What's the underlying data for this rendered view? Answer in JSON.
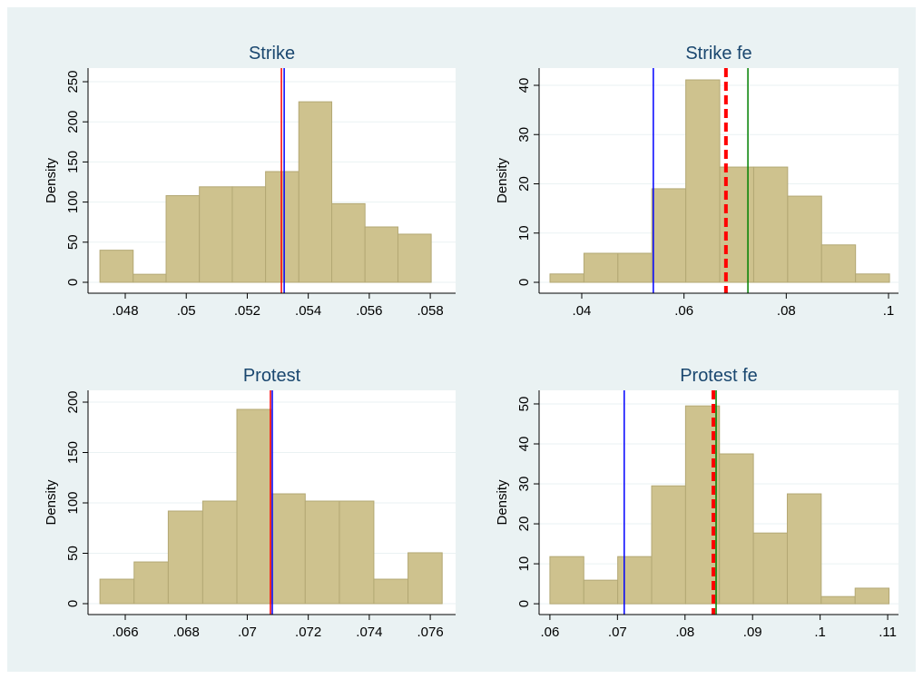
{
  "chart_data": [
    {
      "type": "histogram",
      "title": "Strike",
      "ylabel": "Density",
      "color": "#cec28e",
      "bins": [
        0.04717,
        0.04826,
        0.04934,
        0.05043,
        0.05151,
        0.0526,
        0.05369,
        0.05477,
        0.05586,
        0.05694,
        0.05803
      ],
      "values": [
        40,
        10,
        108,
        119,
        119,
        138,
        225,
        98,
        69,
        60
      ],
      "xlim": [
        0.04678,
        0.05883
      ],
      "ylim": [
        -13.6,
        267
      ],
      "xticks": [
        {
          "value": 0.048,
          "label": ".048"
        },
        {
          "value": 0.05,
          "label": ".05"
        },
        {
          "value": 0.052,
          "label": ".052"
        },
        {
          "value": 0.054,
          "label": ".054"
        },
        {
          "value": 0.056,
          "label": ".056"
        },
        {
          "value": 0.058,
          "label": ".058"
        }
      ],
      "yticks": [
        0,
        50,
        100,
        150,
        200,
        250
      ],
      "grid": true,
      "vlines": [
        {
          "value": 0.05312,
          "color": "#ff0000",
          "dashed": false
        },
        {
          "value": 0.05321,
          "color": "#0000ff",
          "dashed": false
        }
      ]
    },
    {
      "type": "histogram",
      "title": "Strike fe",
      "ylabel": "Density",
      "color": "#cec28e",
      "bins": [
        0.03379,
        0.04043,
        0.04707,
        0.05371,
        0.06035,
        0.06699,
        0.07363,
        0.08027,
        0.08691,
        0.09355,
        0.10019
      ],
      "values": [
        1.7,
        5.9,
        5.9,
        19,
        41.1,
        23.4,
        23.4,
        17.5,
        7.6,
        1.7
      ],
      "xlim": [
        0.03166,
        0.10195
      ],
      "ylim": [
        -2.21,
        43.5
      ],
      "xticks": [
        {
          "value": 0.04,
          "label": ".04"
        },
        {
          "value": 0.06,
          "label": ".06"
        },
        {
          "value": 0.08,
          "label": ".08"
        },
        {
          "value": 0.1,
          "label": ".1"
        }
      ],
      "yticks": [
        0,
        10,
        20,
        30,
        40
      ],
      "grid": true,
      "vlines": [
        {
          "value": 0.054,
          "color": "#0000ff",
          "dashed": false
        },
        {
          "value": 0.0682,
          "color": "#ff0000",
          "dashed": true
        },
        {
          "value": 0.0725,
          "color": "#008000",
          "dashed": false
        }
      ]
    },
    {
      "type": "histogram",
      "title": "Protest",
      "ylabel": "Density",
      "color": "#cec28e",
      "bins": [
        0.06517,
        0.06629,
        0.06741,
        0.06854,
        0.06966,
        0.07078,
        0.0719,
        0.07302,
        0.07415,
        0.07527,
        0.07639
      ],
      "values": [
        24.3,
        41.4,
        91.9,
        101.8,
        192.8,
        109,
        101.8,
        101.8,
        24.3,
        50.5
      ],
      "xlim": [
        0.06478,
        0.07683
      ],
      "ylim": [
        -10.8,
        211.7
      ],
      "xticks": [
        {
          "value": 0.066,
          "label": ".066"
        },
        {
          "value": 0.068,
          "label": ".068"
        },
        {
          "value": 0.07,
          "label": ".07"
        },
        {
          "value": 0.072,
          "label": ".072"
        },
        {
          "value": 0.074,
          "label": ".074"
        },
        {
          "value": 0.076,
          "label": ".076"
        }
      ],
      "yticks": [
        0,
        50,
        100,
        150,
        200
      ],
      "grid": true,
      "vlines": [
        {
          "value": 0.07076,
          "color": "#ff0000",
          "dashed": false
        },
        {
          "value": 0.07082,
          "color": "#0000ff",
          "dashed": false
        }
      ]
    },
    {
      "type": "histogram",
      "title": "Protest fe",
      "ylabel": "Density",
      "color": "#cec28e",
      "bins": [
        0.06,
        0.06502,
        0.07004,
        0.07506,
        0.08008,
        0.0851,
        0.09012,
        0.09514,
        0.10016,
        0.10518,
        0.1102
      ],
      "values": [
        11.8,
        5.9,
        11.8,
        29.5,
        49.5,
        37.5,
        17.7,
        27.5,
        1.8,
        3.9
      ],
      "xlim": [
        0.0584,
        0.1116
      ],
      "ylim": [
        -2.7,
        53.4
      ],
      "xticks": [
        {
          "value": 0.06,
          "label": ".06"
        },
        {
          "value": 0.07,
          "label": ".07"
        },
        {
          "value": 0.08,
          "label": ".08"
        },
        {
          "value": 0.09,
          "label": ".09"
        },
        {
          "value": 0.1,
          "label": ".1"
        },
        {
          "value": 0.11,
          "label": ".11"
        }
      ],
      "yticks": [
        0,
        10,
        20,
        30,
        40,
        50
      ],
      "grid": true,
      "vlines": [
        {
          "value": 0.071,
          "color": "#0000ff",
          "dashed": false
        },
        {
          "value": 0.0842,
          "color": "#ff0000",
          "dashed": true
        },
        {
          "value": 0.0846,
          "color": "#008000",
          "dashed": false
        }
      ]
    }
  ]
}
